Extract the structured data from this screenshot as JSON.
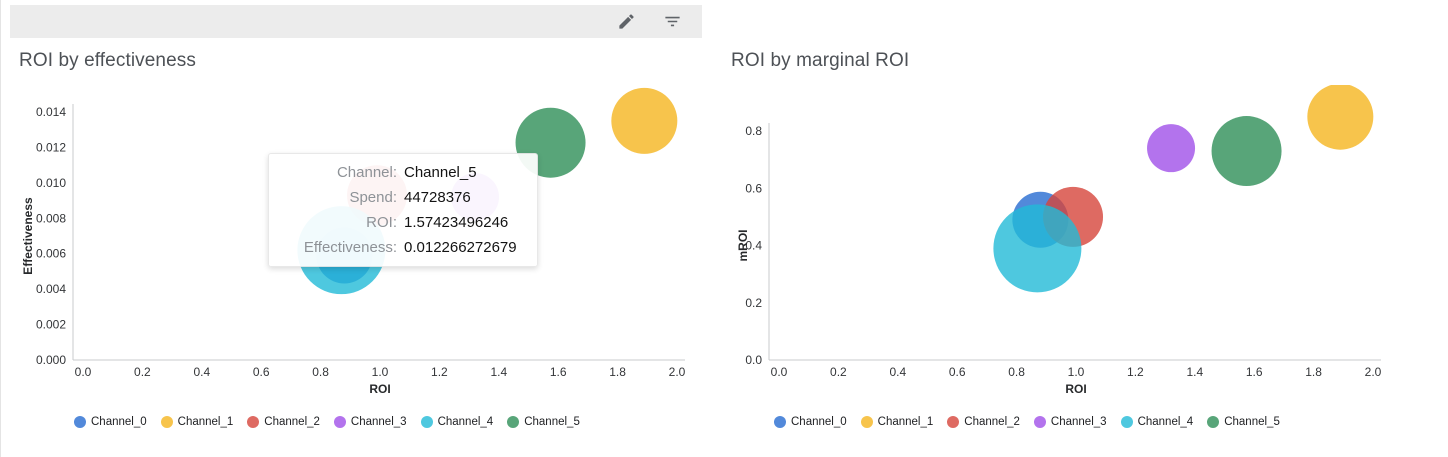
{
  "toolbar": {
    "buttons": [
      {
        "icon": "edit-pencil"
      },
      {
        "icon": "filter-list"
      }
    ]
  },
  "colors": {
    "Channel_0": "#276cd1",
    "Channel_1": "#f5b51f",
    "Channel_2": "#d6453b",
    "Channel_3": "#a050e8",
    "Channel_4": "#22bad7",
    "Channel_5": "#2e8f58"
  },
  "tooltip": {
    "rows": [
      {
        "label": "Channel:",
        "value": "Channel_5"
      },
      {
        "label": "Spend:",
        "value": "44728376"
      },
      {
        "label": "ROI:",
        "value": "1.57423496246"
      },
      {
        "label": "Effectiveness:",
        "value": "0.012266272679"
      }
    ]
  },
  "chart_data": [
    {
      "type": "scatter",
      "title": "ROI by effectiveness",
      "xlabel": "ROI",
      "ylabel": "Effectiveness",
      "xlim": [
        0,
        2
      ],
      "ylim": [
        0,
        0.014
      ],
      "grid": false,
      "legend_position": "bottom",
      "xticks": [
        "0.0",
        "0.2",
        "0.4",
        "0.6",
        "0.8",
        "1.0",
        "1.2",
        "1.4",
        "1.6",
        "1.8",
        "2.0"
      ],
      "yticks": [
        "0.000",
        "0.002",
        "0.004",
        "0.006",
        "0.008",
        "0.010",
        "0.012",
        "0.014"
      ],
      "series": [
        {
          "name": "Channel_0",
          "x": 0.88,
          "y": 0.0059,
          "r": 28
        },
        {
          "name": "Channel_1",
          "x": 1.89,
          "y": 0.0135,
          "r": 33
        },
        {
          "name": "Channel_2",
          "x": 0.99,
          "y": 0.0093,
          "r": 30
        },
        {
          "name": "Channel_3",
          "x": 1.32,
          "y": 0.0092,
          "r": 24
        },
        {
          "name": "Channel_4",
          "x": 0.87,
          "y": 0.0062,
          "r": 44
        },
        {
          "name": "Channel_5",
          "x": 1.57423496246,
          "y": 0.012266272679,
          "r": 35
        }
      ]
    },
    {
      "type": "scatter",
      "title": "ROI by marginal ROI",
      "xlabel": "ROI",
      "ylabel": "mROI",
      "xlim": [
        0,
        2
      ],
      "ylim": [
        0,
        0.8
      ],
      "grid": false,
      "legend_position": "bottom",
      "xticks": [
        "0.0",
        "0.2",
        "0.4",
        "0.6",
        "0.8",
        "1.0",
        "1.2",
        "1.4",
        "1.6",
        "1.8",
        "2.0"
      ],
      "yticks": [
        "0.0",
        "0.2",
        "0.4",
        "0.6",
        "0.8"
      ],
      "series": [
        {
          "name": "Channel_0",
          "x": 0.88,
          "y": 0.49,
          "r": 28
        },
        {
          "name": "Channel_1",
          "x": 1.89,
          "y": 0.85,
          "r": 33
        },
        {
          "name": "Channel_2",
          "x": 0.99,
          "y": 0.5,
          "r": 30
        },
        {
          "name": "Channel_3",
          "x": 1.32,
          "y": 0.74,
          "r": 24
        },
        {
          "name": "Channel_4",
          "x": 0.87,
          "y": 0.39,
          "r": 44
        },
        {
          "name": "Channel_5",
          "x": 1.57423496246,
          "y": 0.73,
          "r": 35
        }
      ]
    }
  ]
}
